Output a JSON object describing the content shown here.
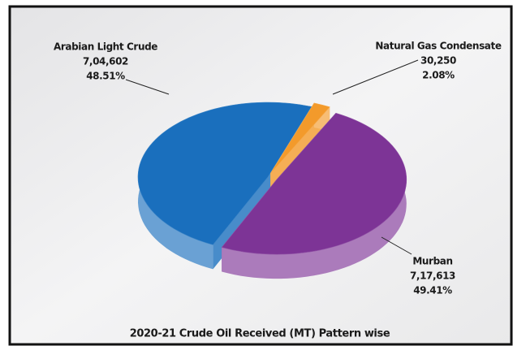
{
  "chart_data": {
    "type": "pie",
    "title": "2020-21 Crude Oil Received (MT) Pattern wise",
    "categories": [
      "Arabian Light Crude",
      "Natural Gas Condensate",
      "Murban"
    ],
    "values": [
      704602,
      30250,
      717613
    ],
    "value_labels": [
      "7,04,602",
      "30,250",
      "7,17,613"
    ],
    "percents": [
      48.51,
      2.08,
      49.41
    ],
    "percent_labels": [
      "48.51%",
      "2.08%",
      "49.41%"
    ],
    "colors": [
      "#1a6fbd",
      "#f39a2b",
      "#7d3496"
    ]
  }
}
